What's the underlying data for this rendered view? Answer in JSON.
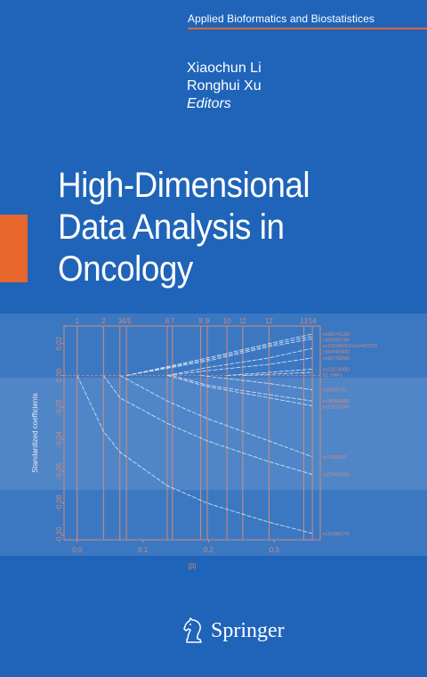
{
  "series": {
    "title": "Applied Bioformatics and Biostatistices"
  },
  "editors": {
    "name1": "Xiaochun Li",
    "name2": "Ronghui Xu",
    "role": "Editors"
  },
  "book": {
    "title_line1": "High-Dimensional",
    "title_line2": "Data Analysis in",
    "title_line3": "Oncology"
  },
  "publisher": {
    "name": "Springer",
    "icon": "knight-chess-piece-icon"
  },
  "colors": {
    "background": "#1f64b9",
    "accent": "#e8672c",
    "plot_lines": "#d08b7a",
    "paths": "#d9e6f5"
  },
  "chart_data": {
    "type": "line",
    "xlabel": "|β|",
    "ylabel": "Standardized coefficients",
    "xlim": [
      -0.02,
      0.37
    ],
    "ylim": [
      -0.103,
      0.031
    ],
    "x_ticks": [
      "0.0",
      "0.1",
      "0.2",
      "0.3"
    ],
    "x_tick_values": [
      0.0,
      0.1,
      0.2,
      0.3
    ],
    "y_ticks": [
      "0.02",
      "0.00",
      "-0.02",
      "-0.04",
      "-0.06",
      "-0.08",
      "-0.10"
    ],
    "y_tick_values": [
      0.02,
      0.0,
      -0.02,
      -0.04,
      -0.06,
      -0.08,
      -0.1
    ],
    "steps": [
      {
        "label": "1",
        "x": 0.0
      },
      {
        "label": "2",
        "x": 0.04
      },
      {
        "label": "3",
        "x": 0.065
      },
      {
        "label": "4/5",
        "x": 0.075
      },
      {
        "label": "6",
        "x": 0.137
      },
      {
        "label": "7",
        "x": 0.145
      },
      {
        "label": "8",
        "x": 0.188
      },
      {
        "label": "9",
        "x": 0.198
      },
      {
        "label": "10",
        "x": 0.228
      },
      {
        "label": "11",
        "x": 0.252
      },
      {
        "label": "12",
        "x": 0.292
      },
      {
        "label": "13",
        "x": 0.345
      },
      {
        "label": "14",
        "x": 0.358
      }
    ],
    "series": [
      {
        "name": "rs1143627R",
        "x": [
          0.0,
          0.04,
          0.065,
          0.137,
          0.198,
          0.292,
          0.358
        ],
        "values": [
          0.0,
          -0.035,
          -0.048,
          -0.069,
          -0.08,
          -0.092,
          -0.099
        ]
      },
      {
        "name": "rs2756109D",
        "x": [
          0.04,
          0.065,
          0.137,
          0.198,
          0.292,
          0.358
        ],
        "values": [
          0.0,
          -0.014,
          -0.03,
          -0.041,
          -0.054,
          -0.062
        ]
      },
      {
        "name": "rs703842R",
        "x": [
          0.065,
          0.137,
          0.198,
          0.292,
          0.358
        ],
        "values": [
          0.0,
          -0.016,
          -0.027,
          -0.041,
          -0.051
        ]
      },
      {
        "name": "rs2181874R",
        "x": [
          0.137,
          0.198,
          0.292,
          0.358
        ],
        "values": [
          0.0,
          -0.007,
          -0.014,
          -0.019
        ]
      },
      {
        "name": "rs2809668R",
        "x": [
          0.145,
          0.198,
          0.292,
          0.358
        ],
        "values": [
          0.0,
          -0.006,
          -0.012,
          -0.016
        ]
      },
      {
        "name": "rs258417D",
        "x": [
          0.188,
          0.292,
          0.358
        ],
        "values": [
          0.0,
          -0.005,
          -0.009
        ]
      },
      {
        "name": "51 SNPs",
        "x": [
          0.252,
          0.358
        ],
        "values": [
          0.0,
          0.002
        ]
      },
      {
        "name": "rs2287499D",
        "x": [
          0.228,
          0.358
        ],
        "values": [
          0.0,
          0.004
        ]
      },
      {
        "name": "rs4077829R",
        "x": [
          0.137,
          0.198,
          0.292,
          0.358
        ],
        "values": [
          0.0,
          0.003,
          0.007,
          0.011
        ]
      },
      {
        "name": "rs6494540D",
        "x": [
          0.137,
          0.198,
          0.292,
          0.358
        ],
        "values": [
          0.0,
          0.005,
          0.011,
          0.017
        ]
      },
      {
        "name": "rs1052442D/rs1149707D",
        "x": [
          0.075,
          0.198,
          0.292,
          0.358
        ],
        "values": [
          0.0,
          0.009,
          0.018,
          0.023
        ]
      },
      {
        "name": "rs6929574R",
        "x": [
          0.075,
          0.198,
          0.292,
          0.358
        ],
        "values": [
          0.0,
          0.01,
          0.019,
          0.0245
        ]
      },
      {
        "name": "rs5667412R",
        "x": [
          0.075,
          0.198,
          0.292,
          0.358
        ],
        "values": [
          0.0,
          0.011,
          0.02,
          0.026
        ]
      }
    ]
  }
}
